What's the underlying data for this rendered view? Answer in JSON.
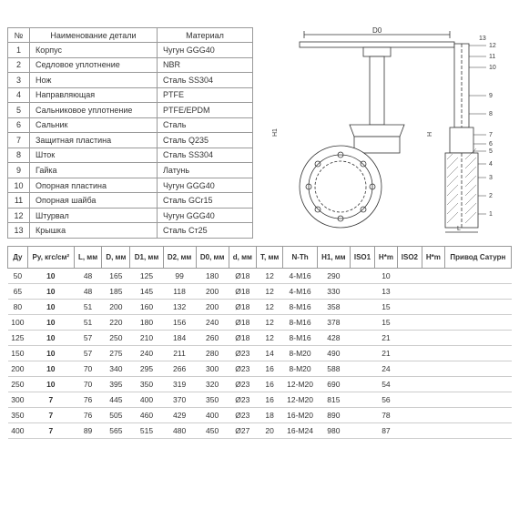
{
  "parts_table": {
    "headers": [
      "№",
      "Наименование детали",
      "Материал"
    ],
    "rows": [
      [
        "1",
        "Корпус",
        "Чугун GGG40"
      ],
      [
        "2",
        "Седловое уплотнение",
        "NBR"
      ],
      [
        "3",
        "Нож",
        "Сталь SS304"
      ],
      [
        "4",
        "Направляющая",
        "PTFE"
      ],
      [
        "5",
        "Сальниковое уплотнение",
        "PTFE/EPDM"
      ],
      [
        "6",
        "Сальник",
        "Сталь"
      ],
      [
        "7",
        "Защитная пластина",
        "Сталь Q235"
      ],
      [
        "8",
        "Шток",
        "Сталь SS304"
      ],
      [
        "9",
        "Гайка",
        "Латунь"
      ],
      [
        "10",
        "Опорная пластина",
        "Чугун GGG40"
      ],
      [
        "11",
        "Опорная шайба",
        "Сталь GCr15"
      ],
      [
        "12",
        "Штурвал",
        "Чугун GGG40"
      ],
      [
        "13",
        "Крышка",
        "Сталь Ст25"
      ]
    ]
  },
  "spec_table": {
    "headers": [
      "Ду",
      "Ру, кгс/см²",
      "L, мм",
      "D, мм",
      "D1, мм",
      "D2, мм",
      "D0, мм",
      "d, мм",
      "T, мм",
      "N-Th",
      "H1, мм",
      "ISO1",
      "H*m",
      "ISO2",
      "H*m",
      "Привод Сатурн"
    ],
    "rows": [
      [
        "50",
        "10",
        "48",
        "165",
        "125",
        "99",
        "180",
        "Ø18",
        "12",
        "4-M16",
        "290",
        "",
        "10",
        "",
        "",
        ""
      ],
      [
        "65",
        "10",
        "48",
        "185",
        "145",
        "118",
        "200",
        "Ø18",
        "12",
        "4-M16",
        "330",
        "",
        "13",
        "",
        "",
        ""
      ],
      [
        "80",
        "10",
        "51",
        "200",
        "160",
        "132",
        "200",
        "Ø18",
        "12",
        "8-M16",
        "358",
        "",
        "15",
        "",
        "",
        ""
      ],
      [
        "100",
        "10",
        "51",
        "220",
        "180",
        "156",
        "240",
        "Ø18",
        "12",
        "8-M16",
        "378",
        "",
        "15",
        "",
        "",
        ""
      ],
      [
        "125",
        "10",
        "57",
        "250",
        "210",
        "184",
        "260",
        "Ø18",
        "12",
        "8-M16",
        "428",
        "",
        "21",
        "",
        "",
        ""
      ],
      [
        "150",
        "10",
        "57",
        "275",
        "240",
        "211",
        "280",
        "Ø23",
        "14",
        "8-M20",
        "490",
        "",
        "21",
        "",
        "",
        ""
      ],
      [
        "200",
        "10",
        "70",
        "340",
        "295",
        "266",
        "300",
        "Ø23",
        "16",
        "8-M20",
        "588",
        "",
        "24",
        "",
        "",
        ""
      ],
      [
        "250",
        "10",
        "70",
        "395",
        "350",
        "319",
        "320",
        "Ø23",
        "16",
        "12-M20",
        "690",
        "",
        "54",
        "",
        "",
        ""
      ],
      [
        "300",
        "7",
        "76",
        "445",
        "400",
        "370",
        "350",
        "Ø23",
        "16",
        "12-M20",
        "815",
        "",
        "56",
        "",
        "",
        ""
      ],
      [
        "350",
        "7",
        "76",
        "505",
        "460",
        "429",
        "400",
        "Ø23",
        "18",
        "16-M20",
        "890",
        "",
        "78",
        "",
        "",
        ""
      ],
      [
        "400",
        "7",
        "89",
        "565",
        "515",
        "480",
        "450",
        "Ø27",
        "20",
        "16-M24",
        "980",
        "",
        "87",
        "",
        "",
        ""
      ]
    ]
  },
  "diagram": {
    "stroke": "#333",
    "fill": "#fff",
    "labels": [
      "D0",
      "12",
      "13",
      "11",
      "10",
      "9",
      "8",
      "7",
      "6",
      "5",
      "4",
      "3",
      "2",
      "1",
      "H1",
      "L",
      "H"
    ]
  }
}
